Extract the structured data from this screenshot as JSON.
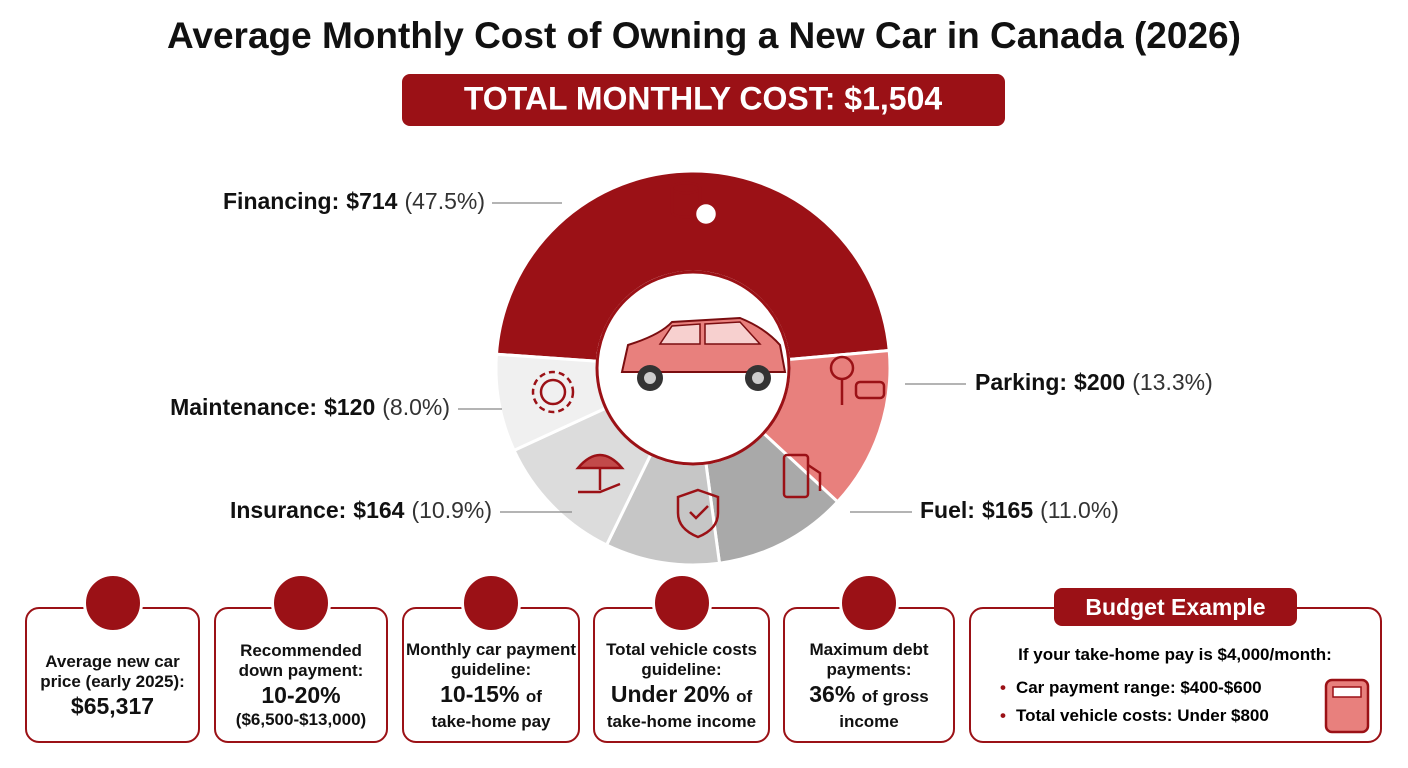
{
  "chart_data": {
    "type": "donut",
    "title": "Average Monthly Cost of Owning a New Car in Canada (2026)",
    "subtitle": "TOTAL MONTHLY COST: $1,504",
    "categories": [
      "Financing:",
      "Parking:",
      "Fuel:",
      null,
      "Insurance:",
      "Maintenance:"
    ],
    "values": [
      714,
      200,
      165,
      141,
      164,
      120
    ],
    "value_labels": [
      "$714",
      "$200",
      "$165",
      null,
      "$164",
      "$120"
    ],
    "share_labels": [
      "(47.5%)",
      "(13.3%)",
      "(11.0%)",
      null,
      "(10.9%)",
      "(8.0%)"
    ],
    "colors": [
      "#9b1116",
      "#e8807d",
      "#a9a9a9",
      "#c6c6c6",
      "#dcdcdc",
      "#f0f0f0"
    ]
  },
  "cards": [
    {
      "label": "Average new car price (early 2025):",
      "highlight": "$65,317"
    },
    {
      "label": "Recommended down payment:",
      "highlight": "10-20%",
      "note": "($6,500-$13,000)"
    },
    {
      "label": "Monthly car payment guideline:",
      "highlight": "10-15%",
      "suffix": "of",
      "note": "take-home pay"
    },
    {
      "label": "Total vehicle costs guideline:",
      "highlight": "Under 20%",
      "suffix": "of",
      "note": "take-home income"
    },
    {
      "label": "Maximum debt payments:",
      "highlight": "36%",
      "suffix": "of gross",
      "note": "income"
    }
  ],
  "budget": {
    "title": "Budget Example",
    "intro": "If your take-home pay is $4,000/month:",
    "items": [
      "Car payment range: $400-$600",
      "Total vehicle costs: Under $800"
    ]
  }
}
